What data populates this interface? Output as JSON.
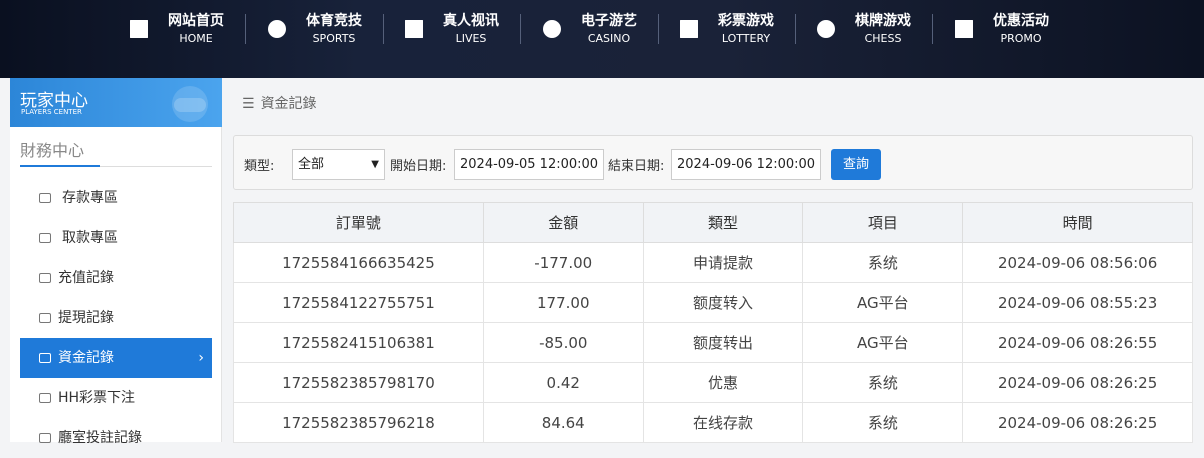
{
  "nav": [
    {
      "label": "网站首页",
      "sub": "HOME"
    },
    {
      "label": "体育竞技",
      "sub": "SPORTS"
    },
    {
      "label": "真人视讯",
      "sub": "LIVES"
    },
    {
      "label": "电子游艺",
      "sub": "CASINO"
    },
    {
      "label": "彩票游戏",
      "sub": "LOTTERY"
    },
    {
      "label": "棋牌游戏",
      "sub": "CHESS"
    },
    {
      "label": "优惠活动",
      "sub": "PROMO"
    }
  ],
  "sidebar": {
    "title": "玩家中心",
    "subtitle": "PLAYERS CENTER",
    "section": "財務中心",
    "items": [
      "存款專區",
      "取款專區",
      "充值記錄",
      "提現記錄",
      "資金記錄",
      "HH彩票下注",
      "廳室投註記錄"
    ]
  },
  "breadcrumb": "資金記錄",
  "filter": {
    "type_label": "類型:",
    "type_value": "全部",
    "start_label": "開始日期:",
    "start_value": "2024-09-05 12:00:00",
    "end_label": "結束日期:",
    "end_value": "2024-09-06 12:00:00",
    "button": "查詢"
  },
  "table": {
    "columns": [
      "訂單號",
      "金額",
      "類型",
      "項目",
      "時間"
    ],
    "rows": [
      [
        "1725584166635425",
        "-177.00",
        "申请提款",
        "系统",
        "2024-09-06 08:56:06"
      ],
      [
        "1725584122755751",
        "177.00",
        "额度转入",
        "AG平台",
        "2024-09-06 08:55:23"
      ],
      [
        "1725582415106381",
        "-85.00",
        "额度转出",
        "AG平台",
        "2024-09-06 08:26:55"
      ],
      [
        "1725582385798170",
        "0.42",
        "优惠",
        "系统",
        "2024-09-06 08:26:25"
      ],
      [
        "1725582385796218",
        "84.64",
        "在线存款",
        "系统",
        "2024-09-06 08:26:25"
      ]
    ]
  }
}
